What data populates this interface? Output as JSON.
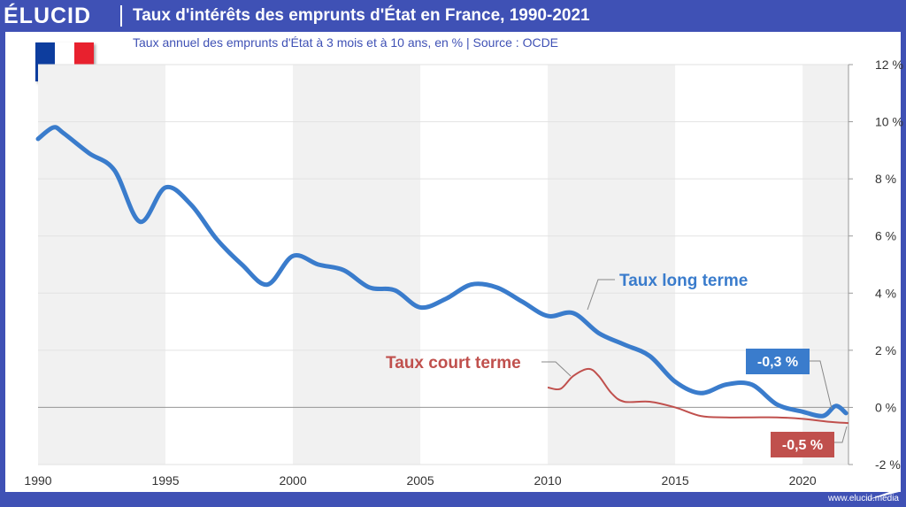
{
  "header": {
    "logo": "ÉLUCID",
    "title": "Taux d'intérêts des emprunts d'État en France, 1990-2021",
    "subtitle": "Taux annuel des emprunts d'État à 3 mois et à 10 ans, en %  |  Source : OCDE"
  },
  "flag": {
    "colors": [
      "#0d3d9e",
      "#ffffff",
      "#e8212e"
    ],
    "icon": "france-flag-icon"
  },
  "footer": {
    "text": "www.elucid.media"
  },
  "colors": {
    "long": "#3a7ccc",
    "short": "#c0504d",
    "brand": "#3f51b5",
    "band": "#f1f1f1"
  },
  "chart_data": {
    "type": "line",
    "title": "Taux d'intérêts des emprunts d'État en France, 1990-2021",
    "subtitle": "Taux annuel des emprunts d'État à 3 mois et à 10 ans, en %  |  Source : OCDE",
    "xlim": [
      1990,
      2021.8
    ],
    "ylim": [
      -2,
      12
    ],
    "x_ticks": [
      "1990",
      "1995",
      "2000",
      "2005",
      "2010",
      "2015",
      "2020"
    ],
    "y_ticks": [
      "12 %",
      "10 %",
      "8 %",
      "6 %",
      "4 %",
      "2 %",
      "0 %",
      "-2 %"
    ],
    "grid": true,
    "series": [
      {
        "name": "Taux long terme",
        "x": [
          1990,
          1990.6,
          1991,
          1992,
          1993,
          1994,
          1995,
          1996,
          1997,
          1998,
          1999,
          2000,
          2001,
          2002,
          2003,
          2004,
          2005,
          2006,
          2007,
          2008,
          2009,
          2010,
          2011,
          2012,
          2013,
          2014,
          2015,
          2016,
          2017,
          2018,
          2019,
          2020,
          2020.8,
          2021.3,
          2021.7
        ],
        "values": [
          9.4,
          9.8,
          9.6,
          8.9,
          8.3,
          6.5,
          7.7,
          7.1,
          5.9,
          5.0,
          4.3,
          5.3,
          5.0,
          4.8,
          4.2,
          4.1,
          3.5,
          3.8,
          4.3,
          4.2,
          3.7,
          3.2,
          3.3,
          2.6,
          2.2,
          1.8,
          0.9,
          0.5,
          0.8,
          0.8,
          0.1,
          -0.15,
          -0.3,
          0.05,
          -0.2
        ]
      },
      {
        "name": "Taux court terme",
        "x": [
          2010,
          2010.5,
          2011,
          2011.6,
          2012,
          2012.5,
          2013,
          2014,
          2015,
          2016,
          2017,
          2018,
          2019,
          2020,
          2021,
          2021.8
        ],
        "values": [
          0.7,
          0.65,
          1.1,
          1.35,
          1.1,
          0.5,
          0.2,
          0.2,
          0.0,
          -0.3,
          -0.35,
          -0.35,
          -0.35,
          -0.4,
          -0.5,
          -0.55
        ]
      }
    ],
    "annotations": [
      {
        "text": "Taux long terme",
        "series": "Taux long terme"
      },
      {
        "text": "Taux court terme",
        "series": "Taux court terme"
      },
      {
        "text": "-0,3 %",
        "series": "Taux long terme",
        "value": -0.3
      },
      {
        "text": "-0,5 %",
        "series": "Taux court terme",
        "value": -0.5
      }
    ]
  }
}
